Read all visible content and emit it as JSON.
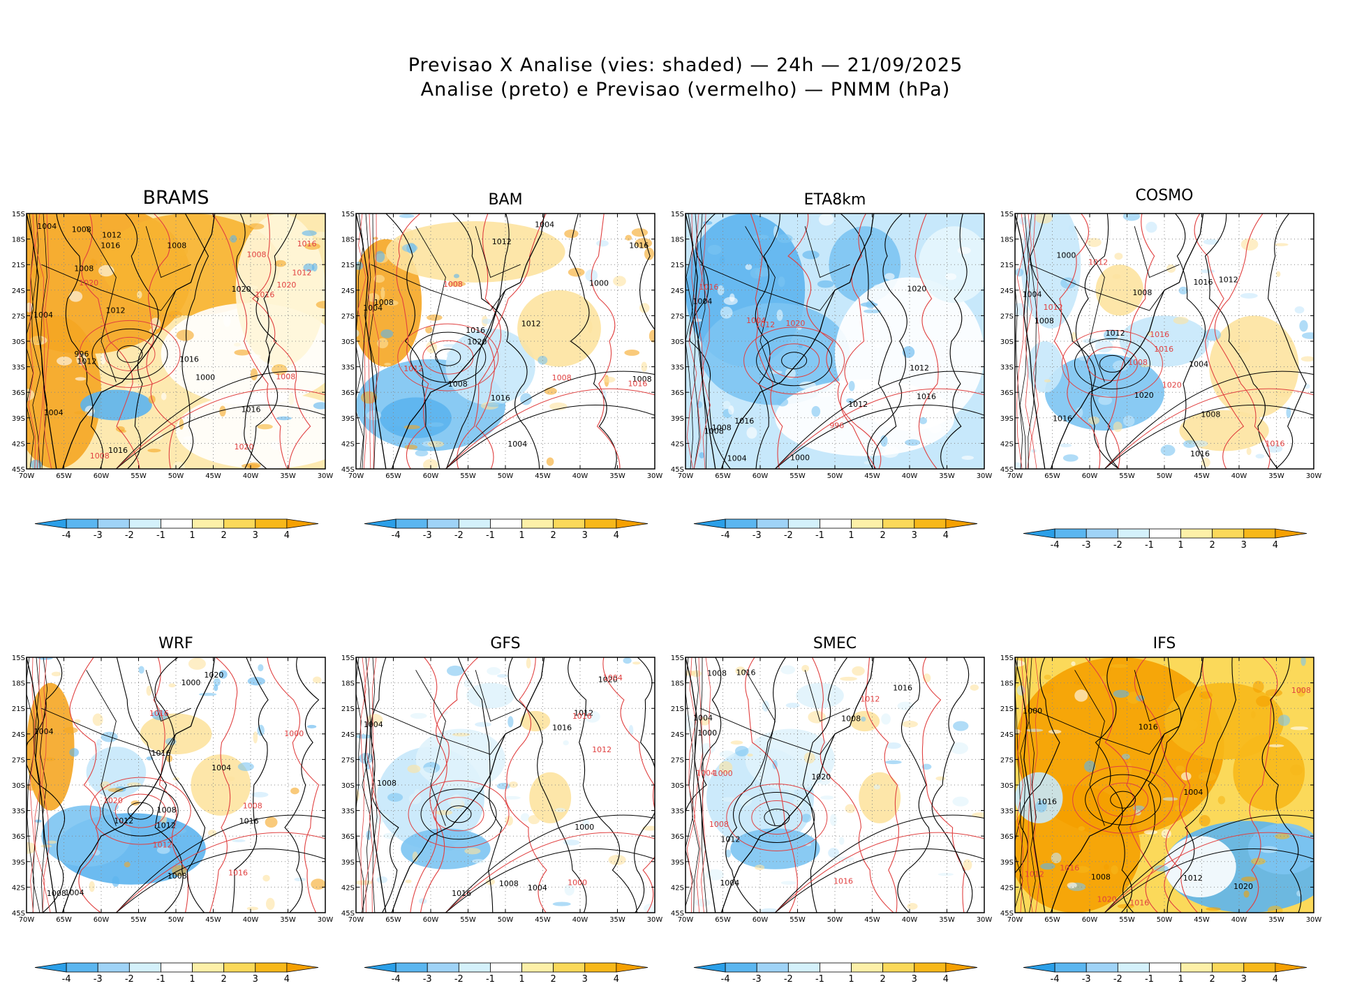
{
  "title": {
    "line1": "Previsao X Analise (vies: shaded) — 24h — 21/09/2025",
    "line2": "Analise (preto) e Previsao (vermelho) — PNMM (hPa)"
  },
  "axes": {
    "lon_labels": [
      "70W",
      "65W",
      "60W",
      "55W",
      "50W",
      "45W",
      "40W",
      "35W",
      "30W"
    ],
    "lat_labels": [
      "15S",
      "18S",
      "21S",
      "24S",
      "27S",
      "30S",
      "33S",
      "36S",
      "39S",
      "42S",
      "45S"
    ],
    "lon_range": [
      -70,
      -30
    ],
    "lat_range": [
      -45,
      -15
    ]
  },
  "colorbar": {
    "labels": [
      "-4",
      "-3",
      "-2",
      "-1",
      "1",
      "2",
      "3",
      "4"
    ],
    "colors": [
      "#2b9fe8",
      "#5bb6f0",
      "#9fd3f7",
      "#d4f1fb",
      "#ffffff",
      "#fdf0a8",
      "#fbd95a",
      "#f7b81a",
      "#f5a000"
    ]
  },
  "colors": {
    "analysis": "#000000",
    "forecast": "#e04040",
    "warm": "#f5a623",
    "warm_light": "#fde3a0",
    "cold": "#5cb4ee",
    "cold_light": "#c7e8fb"
  },
  "panels": [
    {
      "name": "BRAMS",
      "theme": "warm",
      "labels_black": [
        "1004",
        "1012",
        "1000",
        "1008",
        "1004",
        "996",
        "1008",
        "1012",
        "1004",
        "1008",
        "1012",
        "1016",
        "1016",
        "1016",
        "1016",
        "1020"
      ],
      "labels_red": [
        "1008",
        "1008",
        "1020",
        "1016",
        "1020",
        "1020",
        "1012",
        "1008",
        "1016"
      ]
    },
    {
      "name": "BAM",
      "theme": "mixcold",
      "labels_black": [
        "1004",
        "1008",
        "1000",
        "1004",
        "1008",
        "1012",
        "1004",
        "1008",
        "1012",
        "1016",
        "1016",
        "1016",
        "1020"
      ],
      "labels_red": [
        "1012",
        "1008",
        "1016",
        "1008"
      ]
    },
    {
      "name": "ETA8km",
      "theme": "cold",
      "labels_black": [
        "1004",
        "1000",
        "1008",
        "1004",
        "1008",
        "1012",
        "1012",
        "1016",
        "1016",
        "1020"
      ],
      "labels_red": [
        "996",
        "1004",
        "1012",
        "1016",
        "1020"
      ]
    },
    {
      "name": "COSMO",
      "theme": "mixed",
      "labels_black": [
        "1004",
        "1008",
        "1012",
        "1016",
        "1008",
        "1000",
        "1004",
        "1008",
        "1012",
        "1016",
        "1016",
        "1020"
      ],
      "labels_red": [
        "1012",
        "1016",
        "1008",
        "1016",
        "1020",
        "1012",
        "1016"
      ]
    },
    {
      "name": "WRF",
      "theme": "mixcold2",
      "labels_black": [
        "1004",
        "1008",
        "1000",
        "1004",
        "1008",
        "1012",
        "1004",
        "1008",
        "1012",
        "1016",
        "1016",
        "1020"
      ],
      "labels_red": [
        "1000",
        "1008",
        "1012",
        "1016",
        "1016",
        "1020"
      ]
    },
    {
      "name": "GFS",
      "theme": "lightcold",
      "labels_black": [
        "1004",
        "1008",
        "1000",
        "1004",
        "1008",
        "1012",
        "1016",
        "1016",
        "1020"
      ],
      "labels_red": [
        "1000",
        "1004",
        "1012",
        "1016"
      ]
    },
    {
      "name": "SMEC",
      "theme": "lightcold",
      "labels_black": [
        "1004",
        "1008",
        "1000",
        "1004",
        "1008",
        "1012",
        "1016",
        "1016",
        "1020"
      ],
      "labels_red": [
        "1000",
        "1004",
        "1008",
        "1012",
        "1016"
      ]
    },
    {
      "name": "IFS",
      "theme": "hot",
      "labels_black": [
        "1000",
        "1004",
        "1008",
        "1012",
        "1016",
        "1016",
        "1020"
      ],
      "labels_red": [
        "1008",
        "1012",
        "1016",
        "1016",
        "1020"
      ]
    }
  ]
}
